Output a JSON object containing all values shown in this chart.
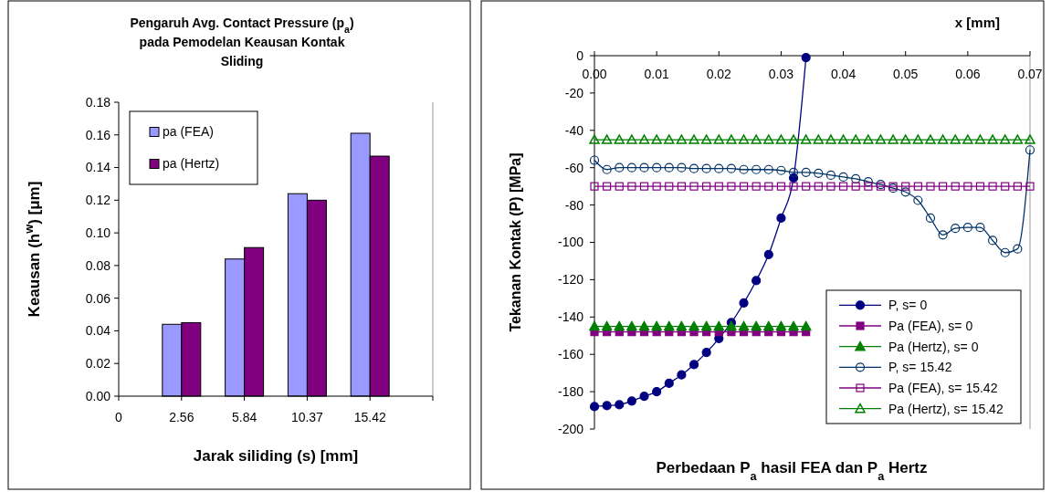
{
  "chart_data": [
    {
      "type": "bar",
      "title": "Pengaruh Avg. Contact Pressure (p$_{a}$) pada Pemodelan Keausan Kontak Sliding",
      "xlabel": "Jarak siliding (s) [mm]",
      "ylabel": "Keausan (h$^{w}$) [μm]",
      "categories": [
        "0",
        "2.56",
        "5.84",
        "10.37",
        "15.42",
        null
      ],
      "series": [
        {
          "name": "pa (FEA)",
          "color": "#9999ff",
          "values": [
            null,
            0.044,
            0.084,
            0.124,
            0.161,
            null
          ]
        },
        {
          "name": "pa (Hertz)",
          "color": "#800080",
          "values": [
            null,
            0.045,
            0.091,
            0.12,
            0.147,
            null
          ]
        }
      ],
      "ylim": [
        0,
        0.18
      ],
      "yticks": [
        {
          "value": 0,
          "label": "0.00"
        },
        {
          "value": 0.02,
          "label": "0.02"
        },
        {
          "value": 0.04,
          "label": "0.04"
        },
        {
          "value": 0.06,
          "label": "0.06"
        },
        {
          "value": 0.08,
          "label": "0.08"
        },
        {
          "value": 0.1,
          "label": "0.10"
        },
        {
          "value": 0.12,
          "label": "0.12"
        },
        {
          "value": 0.14,
          "label": "0.14"
        },
        {
          "value": 0.16,
          "label": "0.16"
        },
        {
          "value": 0.18,
          "label": "0.18"
        }
      ],
      "grid": false,
      "legend": "top left"
    },
    {
      "type": "line",
      "title": "Perbedaan P$_{a}$ hasil FEA dan P$_{a}$ Hertz",
      "xlabel": "x [mm]",
      "ylabel": "Tekanan Kontak (P) [MPa]",
      "series": [
        {
          "name": "P, s= 0",
          "color": "#000080",
          "marker": "circle",
          "x": [
            0,
            0.002,
            0.004,
            0.006,
            0.008,
            0.01,
            0.012,
            0.014,
            0.016,
            0.018,
            0.02,
            0.022,
            0.024,
            0.026,
            0.028,
            0.03,
            0.032,
            0.034
          ],
          "values": [
            -188,
            -187.5,
            -187,
            -185,
            -182.5,
            -180,
            -175.5,
            -171,
            -165.5,
            -159,
            -151.5,
            -143,
            -132.5,
            -120.5,
            -106.5,
            -87,
            -65.5,
            -1
          ]
        },
        {
          "name": "Pa (FEA), s= 0",
          "color": "#800080",
          "marker": "square",
          "x": [
            0,
            0.002,
            0.004,
            0.006,
            0.008,
            0.01,
            0.012,
            0.014,
            0.016,
            0.018,
            0.02,
            0.022,
            0.024,
            0.026,
            0.028,
            0.03,
            0.032,
            0.034
          ],
          "values": [
            -148,
            -148,
            -148,
            -148,
            -148,
            -148,
            -148,
            -148,
            -148,
            -148,
            -148,
            -148,
            -148,
            -148,
            -148,
            -148,
            -148,
            -148
          ]
        },
        {
          "name": "Pa (Hertz), s= 0",
          "color": "#008000",
          "marker": "triangle",
          "x": [
            0,
            0.002,
            0.004,
            0.006,
            0.008,
            0.01,
            0.012,
            0.014,
            0.016,
            0.018,
            0.02,
            0.022,
            0.024,
            0.026,
            0.028,
            0.03,
            0.032,
            0.034
          ],
          "values": [
            -145,
            -145,
            -145,
            -145,
            -145,
            -145,
            -145,
            -145,
            -145,
            -145,
            -145,
            -145,
            -145,
            -145,
            -145,
            -145,
            -145,
            -145
          ]
        },
        {
          "name": "P, s= 15.42",
          "color": "#003366",
          "marker": "circle",
          "x": [
            0,
            0.002,
            0.004,
            0.006,
            0.008,
            0.01,
            0.012,
            0.014,
            0.016,
            0.018,
            0.02,
            0.022,
            0.024,
            0.026,
            0.028,
            0.03,
            0.032,
            0.034,
            0.036,
            0.038,
            0.04,
            0.042,
            0.044,
            0.046,
            0.048,
            0.05,
            0.052,
            0.054,
            0.056,
            0.058,
            0.06,
            0.062,
            0.064,
            0.066,
            0.068,
            0.07
          ],
          "values": [
            -56,
            -61,
            -60,
            -60,
            -60,
            -60,
            -60,
            -60,
            -60.5,
            -60.5,
            -60.5,
            -60.5,
            -61,
            -61,
            -61,
            -61.5,
            -62.5,
            -62.5,
            -63,
            -64,
            -65,
            -66,
            -67.5,
            -69,
            -71,
            -73,
            -77.5,
            -87,
            -96,
            -92.5,
            -92,
            -92,
            -99,
            -105.5,
            -103.5,
            -50.5
          ]
        },
        {
          "name": "Pa (FEA), s= 15.42",
          "color": "#800080",
          "marker": "square",
          "x": [
            0,
            0.002,
            0.004,
            0.006,
            0.008,
            0.01,
            0.012,
            0.014,
            0.016,
            0.018,
            0.02,
            0.022,
            0.024,
            0.026,
            0.028,
            0.03,
            0.032,
            0.034,
            0.036,
            0.038,
            0.04,
            0.042,
            0.044,
            0.046,
            0.048,
            0.05,
            0.052,
            0.054,
            0.056,
            0.058,
            0.06,
            0.062,
            0.064,
            0.066,
            0.068,
            0.07
          ],
          "values": [
            -70,
            -70,
            -70,
            -70,
            -70,
            -70,
            -70,
            -70,
            -70,
            -70,
            -70,
            -70,
            -70,
            -70,
            -70,
            -70,
            -70,
            -70,
            -70,
            -70,
            -70,
            -70,
            -70,
            -70,
            -70,
            -70,
            -70,
            -70,
            -70,
            -70,
            -70,
            -70,
            -70,
            -70,
            -70,
            -70
          ]
        },
        {
          "name": "Pa (Hertz), s= 15.42",
          "color": "#008000",
          "marker": "triangle",
          "x": [
            0,
            0.002,
            0.004,
            0.006,
            0.008,
            0.01,
            0.012,
            0.014,
            0.016,
            0.018,
            0.02,
            0.022,
            0.024,
            0.026,
            0.028,
            0.03,
            0.032,
            0.034,
            0.036,
            0.038,
            0.04,
            0.042,
            0.044,
            0.046,
            0.048,
            0.05,
            0.052,
            0.054,
            0.056,
            0.058,
            0.06,
            0.062,
            0.064,
            0.066,
            0.068,
            0.07
          ],
          "values": [
            -45,
            -45,
            -45,
            -45,
            -45,
            -45,
            -45,
            -45,
            -45,
            -45,
            -45,
            -45,
            -45,
            -45,
            -45,
            -45,
            -45,
            -45,
            -45,
            -45,
            -45,
            -45,
            -45,
            -45,
            -45,
            -45,
            -45,
            -45,
            -45,
            -45,
            -45,
            -45,
            -45,
            -45,
            -45,
            -45
          ]
        }
      ],
      "xlim": [
        0,
        0.07
      ],
      "xticks": [
        {
          "value": 0,
          "label": "0.00"
        },
        0.01,
        0.02,
        0.03,
        0.04,
        0.05,
        0.06,
        0.07
      ],
      "ylim": [
        -200,
        0
      ],
      "yticks": [
        0,
        -20,
        -40,
        -60,
        -80,
        -100,
        -120,
        -140,
        -160,
        -180,
        -200
      ],
      "grid": false,
      "legend": "bottom right",
      "line_style": "solid"
    }
  ]
}
